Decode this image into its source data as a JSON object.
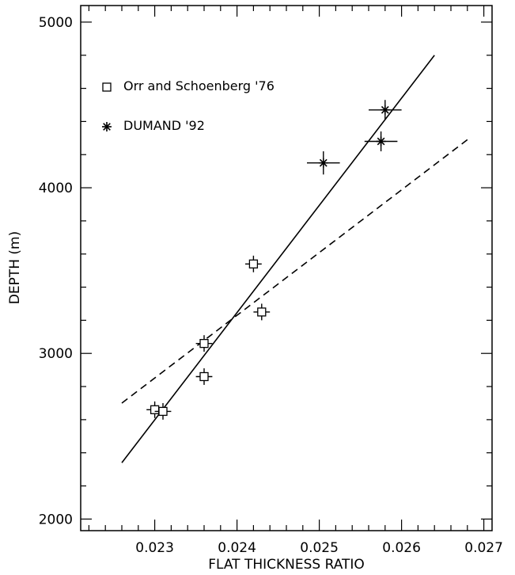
{
  "chart_data": {
    "type": "scatter",
    "xlabel": "FLAT THICKNESS RATIO",
    "ylabel": "DEPTH (m)",
    "xlim": [
      0.0221,
      0.0271
    ],
    "ylim": [
      1930,
      5100
    ],
    "xticks": [
      0.023,
      0.024,
      0.025,
      0.026,
      0.027
    ],
    "xtick_labels": [
      "0.023",
      "0.024",
      "0.025",
      "0.026",
      "0.027"
    ],
    "yticks": [
      2000,
      3000,
      4000,
      5000
    ],
    "ytick_labels": [
      "2000",
      "3000",
      "4000",
      "5000"
    ],
    "legend_position": "top-left",
    "series": [
      {
        "name": "Orr and Schoenberg '76",
        "marker": "square",
        "points": [
          {
            "x": 0.023,
            "y": 2660,
            "xerr": 0.0001,
            "yerr": 50
          },
          {
            "x": 0.0231,
            "y": 2650,
            "xerr": 0.0001,
            "yerr": 50
          },
          {
            "x": 0.0236,
            "y": 2860,
            "xerr": 0.0001,
            "yerr": 50
          },
          {
            "x": 0.0236,
            "y": 3060,
            "xerr": 0.0001,
            "yerr": 50
          },
          {
            "x": 0.0242,
            "y": 3540,
            "xerr": 0.0001,
            "yerr": 50
          },
          {
            "x": 0.0243,
            "y": 3250,
            "xerr": 0.0001,
            "yerr": 50
          }
        ]
      },
      {
        "name": "DUMAND '92",
        "marker": "asterisk",
        "points": [
          {
            "x": 0.02505,
            "y": 4150,
            "xerr": 0.0002,
            "yerr": 70
          },
          {
            "x": 0.02575,
            "y": 4280,
            "xerr": 0.0002,
            "yerr": 60
          },
          {
            "x": 0.0258,
            "y": 4470,
            "xerr": 0.0002,
            "yerr": 60
          }
        ]
      }
    ],
    "fit_lines": [
      {
        "style": "solid",
        "x": [
          0.0226,
          0.0264
        ],
        "y": [
          2340,
          4800
        ]
      },
      {
        "style": "dashed",
        "x": [
          0.0226,
          0.0268
        ],
        "y": [
          2700,
          4290
        ]
      }
    ]
  }
}
